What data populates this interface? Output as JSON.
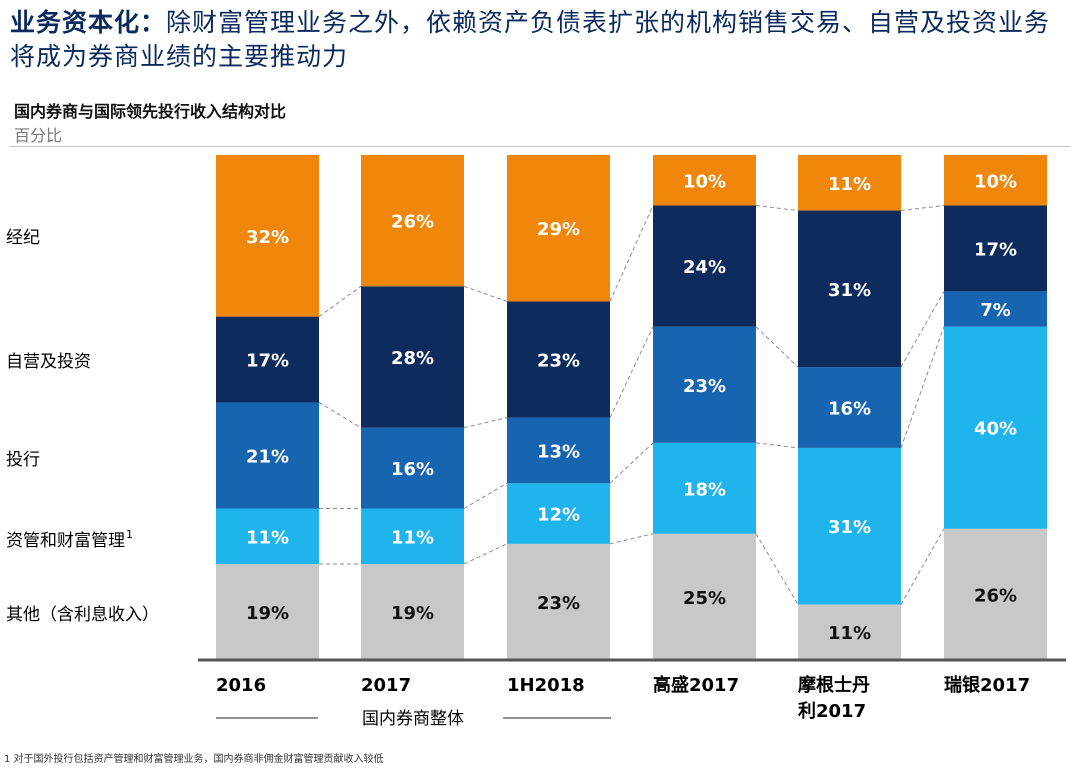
{
  "headline": {
    "lead": "业务资本化：",
    "text": "除财富管理业务之外，依赖资产负债表扩张的机构销售交易、自营及投资业务将成为券商业绩的主要推动力"
  },
  "subtitle": "国内券商与国际领先投行收入结构对比",
  "unit": "百分比",
  "footnote": "1 对于国外投行包括资产管理和财富管理业务，国内券商非佣金财富管理贡献收入较低",
  "colors": {
    "brokerage": "#f0860a",
    "proprietary": "#0d2b5c",
    "ib": "#1764b0",
    "asset_mgmt": "#20b4ec",
    "other": "#c8c8c8",
    "label_light": "#ffffff",
    "label_dark": "#111111"
  },
  "chart_data": {
    "type": "bar",
    "stacked": true,
    "normalized": true,
    "categories": [
      "2016",
      "2017",
      "1H2018",
      "高盛2017",
      "摩根士丹利2017",
      "瑞银2017"
    ],
    "category_lines": [
      [
        "2016"
      ],
      [
        "2017"
      ],
      [
        "1H2018"
      ],
      [
        "高盛2017"
      ],
      [
        "摩根士丹",
        "利2017"
      ],
      [
        "瑞银2017"
      ]
    ],
    "group_label": "国内券商整体",
    "group_categories": [
      "2016",
      "2017",
      "1H2018"
    ],
    "series": [
      {
        "name": "其他（含利息收入）",
        "key": "other",
        "values": [
          19,
          19,
          23,
          25,
          11,
          26
        ]
      },
      {
        "name": "资管和财富管理",
        "sup": "1",
        "key": "asset_mgmt",
        "values": [
          11,
          11,
          12,
          18,
          31,
          40
        ]
      },
      {
        "name": "投行",
        "key": "ib",
        "values": [
          21,
          16,
          13,
          23,
          16,
          7
        ]
      },
      {
        "name": "自营及投资",
        "key": "proprietary",
        "values": [
          17,
          28,
          23,
          24,
          31,
          17
        ]
      },
      {
        "name": "经纪",
        "key": "brokerage",
        "values": [
          32,
          26,
          29,
          10,
          11,
          10
        ]
      }
    ],
    "value_suffix": "%",
    "ylim": [
      0,
      100
    ]
  }
}
